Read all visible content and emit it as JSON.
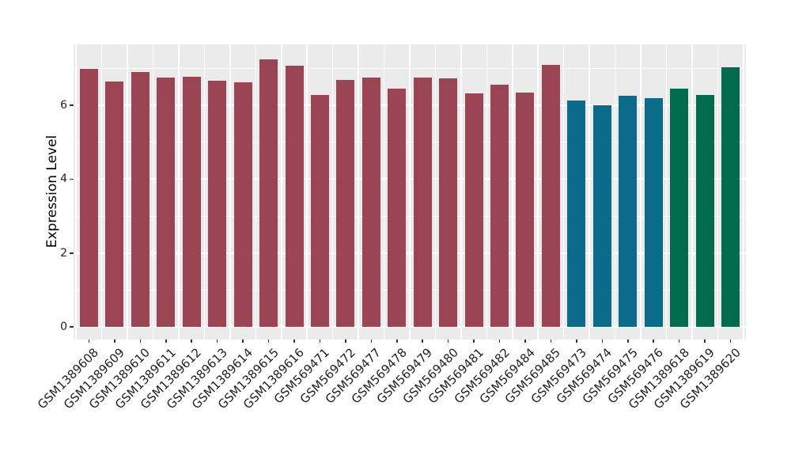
{
  "chart_data": {
    "type": "bar",
    "title": "",
    "xlabel": "",
    "ylabel": "Expression Level",
    "categories": [
      "GSM1389608",
      "GSM1389609",
      "GSM1389610",
      "GSM1389611",
      "GSM1389612",
      "GSM1389613",
      "GSM1389614",
      "GSM1389615",
      "GSM1389616",
      "GSM569471",
      "GSM569472",
      "GSM569477",
      "GSM569478",
      "GSM569479",
      "GSM569480",
      "GSM569481",
      "GSM569482",
      "GSM569484",
      "GSM569485",
      "GSM569473",
      "GSM569474",
      "GSM569475",
      "GSM569476",
      "GSM1389618",
      "GSM1389619",
      "GSM1389620"
    ],
    "values": [
      6.98,
      6.65,
      6.89,
      6.74,
      6.77,
      6.67,
      6.62,
      7.25,
      7.07,
      6.27,
      6.68,
      6.75,
      6.44,
      6.74,
      6.72,
      6.32,
      6.56,
      6.35,
      7.1,
      6.13,
      5.99,
      6.26,
      6.2,
      6.46,
      6.27,
      7.03
    ],
    "bar_colors": [
      "#9B4453",
      "#9B4453",
      "#9B4453",
      "#9B4453",
      "#9B4453",
      "#9B4453",
      "#9B4453",
      "#9B4453",
      "#9B4453",
      "#9B4453",
      "#9B4453",
      "#9B4453",
      "#9B4453",
      "#9B4453",
      "#9B4453",
      "#9B4453",
      "#9B4453",
      "#9B4453",
      "#9B4453",
      "#0C6A8A",
      "#0C6A8A",
      "#0C6A8A",
      "#0C6A8A",
      "#006B4E",
      "#006B4E",
      "#006B4E"
    ],
    "group_colors": {
      "maroon": "#9B4453",
      "teal": "#0C6A8A",
      "green": "#006B4E"
    },
    "yticks": [
      0,
      2,
      4,
      6
    ],
    "ytick_labels": [
      "0",
      "2",
      "4",
      "6"
    ],
    "minor_yticks": [
      1,
      3,
      5,
      7
    ],
    "ylim": [
      -0.34,
      7.65
    ],
    "grid": true,
    "legend_position": "none",
    "panel_background": "#EBEBEB",
    "grid_color": "#FFFFFF",
    "tick_color": "#333333"
  }
}
